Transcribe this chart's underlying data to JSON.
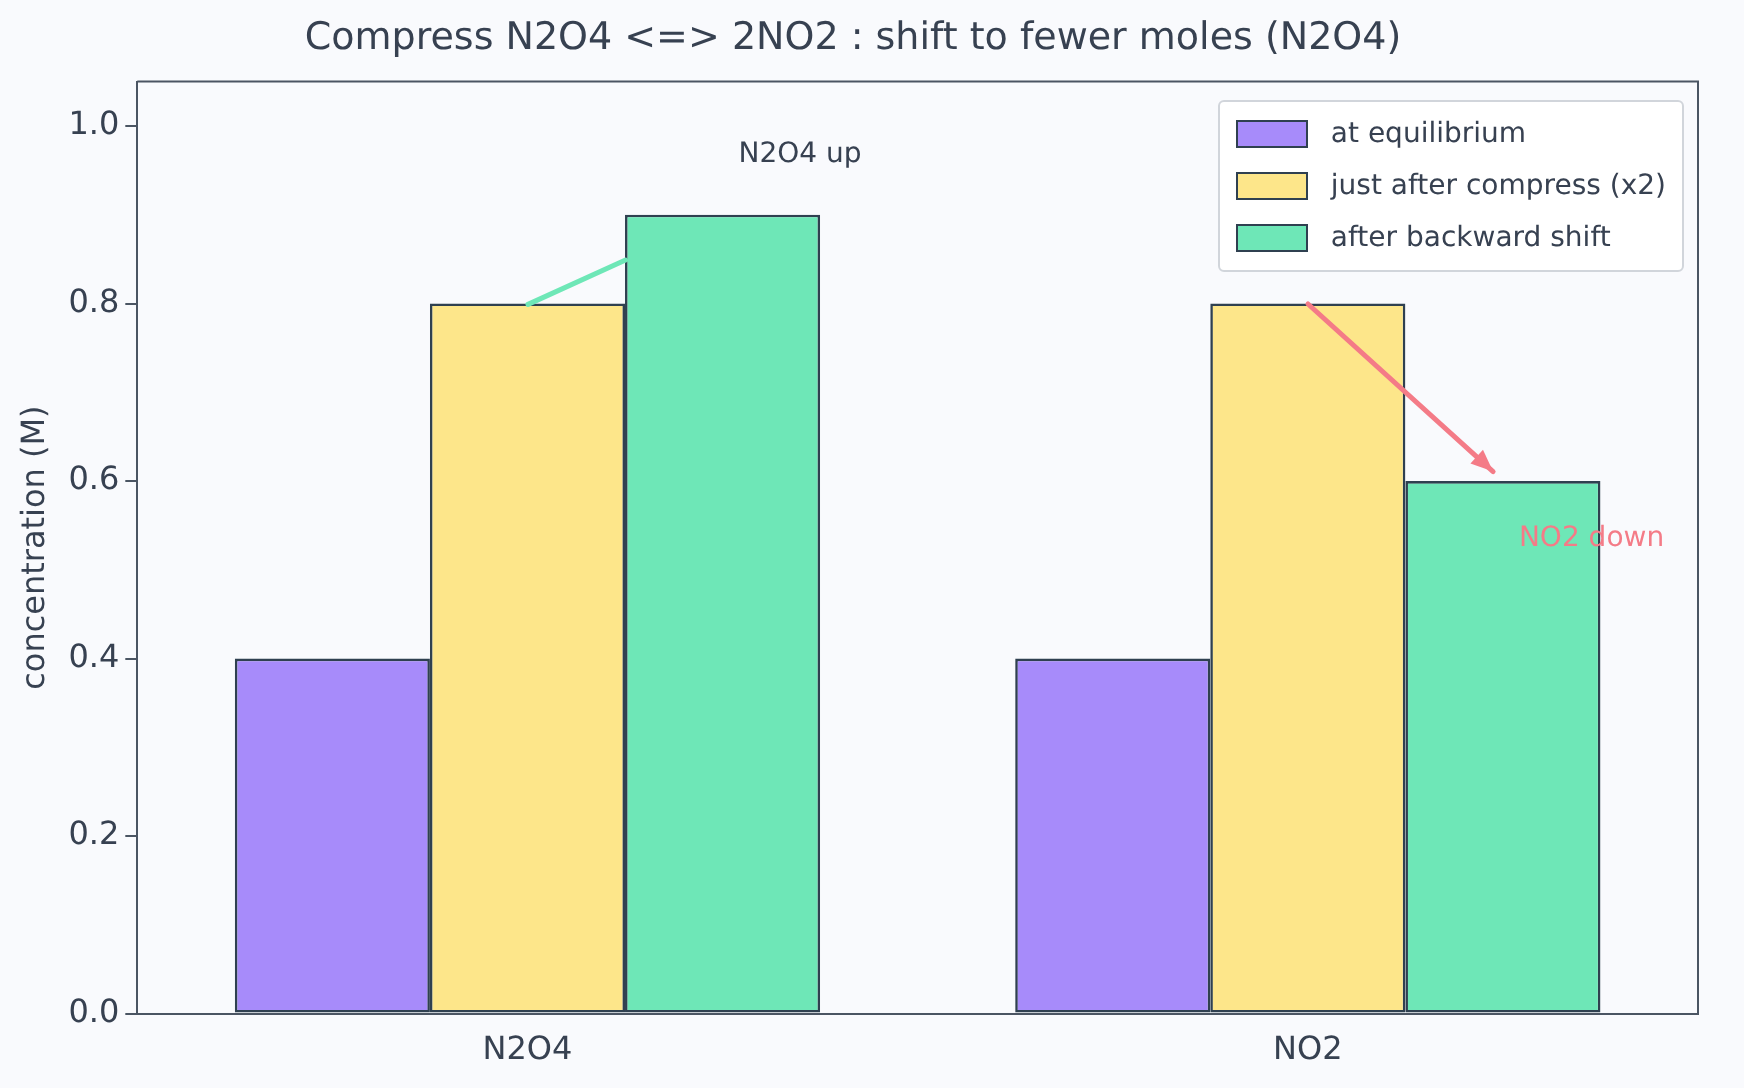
{
  "chart_data": {
    "type": "bar",
    "title": "Compress N2O4 <=> 2NO2 : shift to fewer moles (N2O4)",
    "ylabel": "concentration (M)",
    "categories": [
      "N2O4",
      "NO2"
    ],
    "series": [
      {
        "name": "at equilibrium",
        "color": "#a78bfa",
        "values": [
          0.4,
          0.4
        ]
      },
      {
        "name": "just after compress (x2)",
        "color": "#fde68a",
        "values": [
          0.8,
          0.8
        ]
      },
      {
        "name": "after backward shift",
        "color": "#6ee7b7",
        "values": [
          0.9,
          0.6
        ]
      }
    ],
    "ylim": [
      0,
      1.05
    ],
    "yticks": [
      {
        "value": 0,
        "label": "0.0"
      },
      0.2,
      0.4,
      0.6,
      0.8,
      {
        "value": 1,
        "label": "1.0"
      }
    ],
    "grid": false,
    "legend": "top right",
    "annotations": [
      "N2O4 up",
      "NO2 down"
    ]
  }
}
